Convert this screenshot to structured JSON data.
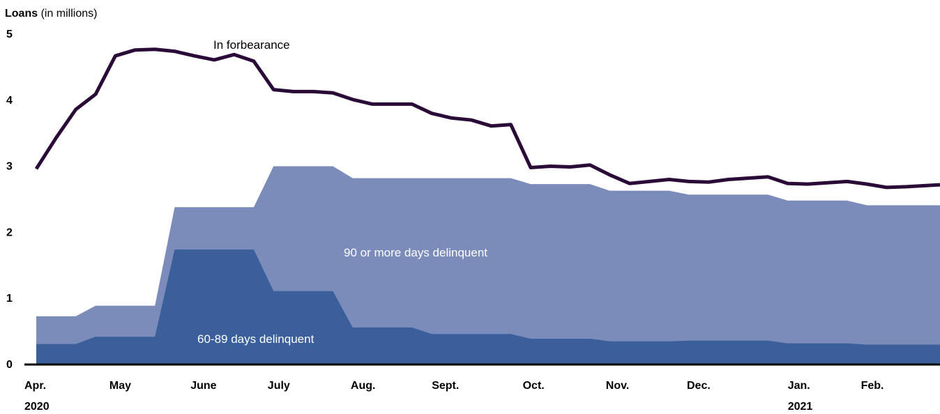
{
  "chart_data": {
    "type": "area",
    "title": "",
    "ylabel_bold": "Loans",
    "ylabel_rest": " (in millions)",
    "ylim": [
      0,
      5
    ],
    "yticks": [
      "0",
      "1",
      "2",
      "3",
      "4",
      "5"
    ],
    "xlim": [
      0,
      45.7
    ],
    "month_ticks": [
      {
        "label": "Apr.",
        "x": 0
      },
      {
        "label": "May",
        "x": 4.3
      },
      {
        "label": "June",
        "x": 8.4
      },
      {
        "label": "July",
        "x": 12.3
      },
      {
        "label": "Aug.",
        "x": 16.5
      },
      {
        "label": "Sept.",
        "x": 20.6
      },
      {
        "label": "Oct.",
        "x": 25.2
      },
      {
        "label": "Nov.",
        "x": 29.4
      },
      {
        "label": "Dec.",
        "x": 33.5
      },
      {
        "label": "Jan.",
        "x": 38.6
      },
      {
        "label": "Feb.",
        "x": 42.3
      }
    ],
    "year_labels": [
      {
        "label": "2020",
        "x": 0
      },
      {
        "label": "2021",
        "x": 38.6
      }
    ],
    "colors": {
      "forbearance": "#2a0a36",
      "delinquent_90": "#7b8bba",
      "delinquent_60_89": "#3a5f9b",
      "axis": "#000000"
    },
    "series": [
      {
        "name": "In forbearance",
        "kind": "line",
        "points": [
          [
            0,
            2.95
          ],
          [
            1,
            3.42
          ],
          [
            2,
            3.85
          ],
          [
            3,
            4.08
          ],
          [
            4,
            4.66
          ],
          [
            5,
            4.75
          ],
          [
            6,
            4.76
          ],
          [
            7,
            4.73
          ],
          [
            8,
            4.66
          ],
          [
            9,
            4.6
          ],
          [
            10,
            4.68
          ],
          [
            11,
            4.58
          ],
          [
            12,
            4.15
          ],
          [
            13,
            4.12
          ],
          [
            14,
            4.12
          ],
          [
            15,
            4.1
          ],
          [
            16,
            4.0
          ],
          [
            17,
            3.93
          ],
          [
            18,
            3.93
          ],
          [
            19,
            3.93
          ],
          [
            20,
            3.79
          ],
          [
            21,
            3.72
          ],
          [
            22,
            3.69
          ],
          [
            23,
            3.6
          ],
          [
            24,
            3.62
          ],
          [
            25,
            2.97
          ],
          [
            26,
            2.99
          ],
          [
            27,
            2.98
          ],
          [
            28,
            3.01
          ],
          [
            29,
            2.86
          ],
          [
            30,
            2.73
          ],
          [
            31,
            2.76
          ],
          [
            32,
            2.79
          ],
          [
            33,
            2.76
          ],
          [
            34,
            2.75
          ],
          [
            35,
            2.79
          ],
          [
            36,
            2.81
          ],
          [
            37,
            2.83
          ],
          [
            38,
            2.73
          ],
          [
            39,
            2.72
          ],
          [
            40,
            2.74
          ],
          [
            41,
            2.76
          ],
          [
            42,
            2.72
          ],
          [
            43,
            2.67
          ],
          [
            44,
            2.68
          ],
          [
            45.7,
            2.71
          ]
        ]
      },
      {
        "name": "90 or more days delinquent",
        "kind": "step-area",
        "steps": [
          [
            0,
            2,
            0.72
          ],
          [
            3,
            6,
            0.88
          ],
          [
            7,
            11,
            2.37
          ],
          [
            12,
            15,
            2.99
          ],
          [
            16,
            24,
            2.81
          ],
          [
            25,
            28,
            2.72
          ],
          [
            29,
            32,
            2.62
          ],
          [
            33,
            37,
            2.56
          ],
          [
            38,
            41,
            2.47
          ],
          [
            42,
            45.7,
            2.4
          ]
        ]
      },
      {
        "name": "60-89 days delinquent",
        "kind": "step-area",
        "steps": [
          [
            0,
            2,
            0.3
          ],
          [
            3,
            6,
            0.41
          ],
          [
            7,
            11,
            1.73
          ],
          [
            12,
            15,
            1.1
          ],
          [
            16,
            19,
            0.55
          ],
          [
            20,
            24,
            0.45
          ],
          [
            25,
            28,
            0.38
          ],
          [
            29,
            32,
            0.34
          ],
          [
            33,
            37,
            0.35
          ],
          [
            38,
            41,
            0.31
          ],
          [
            42,
            45.7,
            0.29
          ]
        ]
      }
    ],
    "annotations": {
      "forbearance": "In forbearance",
      "delinquent_90": "90 or more days delinquent",
      "delinquent_60_89": "60-89 days delinquent"
    },
    "grid": false,
    "legend": "none"
  }
}
